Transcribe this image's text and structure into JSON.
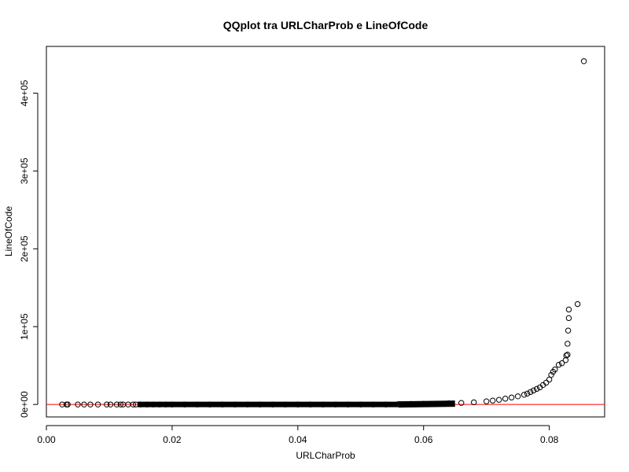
{
  "chart_data": {
    "type": "scatter",
    "title": "QQplot tra URLCharProb e LineOfCode",
    "xlabel": "URLCharProb",
    "ylabel": "LineOfCode",
    "xlim": [
      0,
      0.0888
    ],
    "ylim": [
      -16000,
      460000
    ],
    "x_ticks": [
      0.0,
      0.02,
      0.04,
      0.06,
      0.08
    ],
    "x_tick_labels": [
      "0.00",
      "0.02",
      "0.04",
      "0.06",
      "0.08"
    ],
    "y_ticks": [
      0,
      100000,
      200000,
      300000,
      400000
    ],
    "y_tick_labels": [
      "0e+00",
      "1e+05",
      "2e+05",
      "3e+05",
      "4e+05"
    ],
    "grid": false,
    "point_color": "#000000",
    "reference_line": {
      "type": "horizontal",
      "y": 0,
      "color": "#ff0000"
    },
    "points": [
      [
        0.0025,
        0
      ],
      [
        0.0032,
        0
      ],
      [
        0.0034,
        0
      ],
      [
        0.005,
        0
      ],
      [
        0.006,
        0
      ],
      [
        0.007,
        0
      ],
      [
        0.0082,
        0
      ],
      [
        0.0096,
        0
      ],
      [
        0.0102,
        0
      ],
      [
        0.0112,
        0
      ],
      [
        0.0118,
        0
      ],
      [
        0.0122,
        0
      ],
      [
        0.013,
        0
      ],
      [
        0.0138,
        0
      ],
      [
        0.0142,
        0
      ],
      [
        0.015,
        0
      ],
      [
        0.016,
        0
      ],
      [
        0.017,
        0
      ],
      [
        0.018,
        0
      ],
      [
        0.019,
        0
      ],
      [
        0.02,
        0
      ],
      [
        0.022,
        0
      ],
      [
        0.024,
        0
      ],
      [
        0.026,
        0
      ],
      [
        0.028,
        0
      ],
      [
        0.03,
        0
      ],
      [
        0.032,
        0
      ],
      [
        0.034,
        0
      ],
      [
        0.036,
        0
      ],
      [
        0.038,
        0
      ],
      [
        0.04,
        0
      ],
      [
        0.042,
        0
      ],
      [
        0.044,
        0
      ],
      [
        0.046,
        0
      ],
      [
        0.048,
        0
      ],
      [
        0.05,
        0
      ],
      [
        0.052,
        0
      ],
      [
        0.054,
        0
      ],
      [
        0.056,
        500
      ],
      [
        0.058,
        700
      ],
      [
        0.06,
        900
      ],
      [
        0.062,
        1100
      ],
      [
        0.064,
        1500
      ],
      [
        0.066,
        2000
      ],
      [
        0.068,
        2800
      ],
      [
        0.07,
        4000
      ],
      [
        0.071,
        5000
      ],
      [
        0.072,
        6000
      ],
      [
        0.073,
        7500
      ],
      [
        0.074,
        9000
      ],
      [
        0.075,
        10500
      ],
      [
        0.076,
        12500
      ],
      [
        0.0765,
        14000
      ],
      [
        0.077,
        16000
      ],
      [
        0.0775,
        18000
      ],
      [
        0.078,
        20000
      ],
      [
        0.0785,
        22000
      ],
      [
        0.079,
        25000
      ],
      [
        0.0795,
        28000
      ],
      [
        0.08,
        32000
      ],
      [
        0.0803,
        38000
      ],
      [
        0.0806,
        42000
      ],
      [
        0.0809,
        45000
      ],
      [
        0.0815,
        51000
      ],
      [
        0.082,
        53000
      ],
      [
        0.0826,
        57000
      ],
      [
        0.0827,
        63000
      ],
      [
        0.0829,
        64000
      ],
      [
        0.0829,
        78000
      ],
      [
        0.083,
        95000
      ],
      [
        0.0831,
        111000
      ],
      [
        0.0831,
        122000
      ],
      [
        0.0845,
        129000
      ],
      [
        0.0855,
        441000
      ]
    ]
  }
}
